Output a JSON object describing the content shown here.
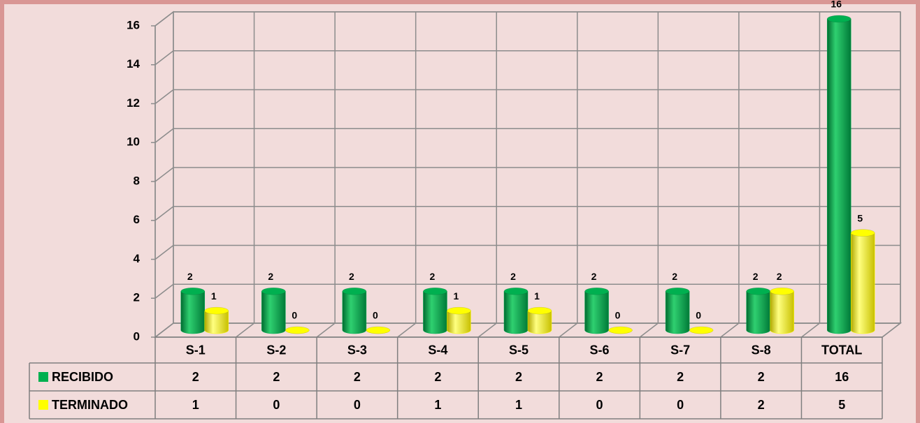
{
  "chart_data": {
    "type": "bar",
    "categories": [
      "S-1",
      "S-2",
      "S-3",
      "S-4",
      "S-5",
      "S-6",
      "S-7",
      "S-8",
      "TOTAL"
    ],
    "series": [
      {
        "name": "RECIBIDO",
        "color": "#00b050",
        "values": [
          2,
          2,
          2,
          2,
          2,
          2,
          2,
          2,
          16
        ]
      },
      {
        "name": "TERMINADO",
        "color": "#ffff00",
        "values": [
          1,
          0,
          0,
          1,
          1,
          0,
          0,
          2,
          5
        ]
      }
    ],
    "ylim": [
      0,
      16
    ],
    "yticks": [
      0,
      2,
      4,
      6,
      8,
      10,
      12,
      14,
      16
    ],
    "grid": true
  }
}
